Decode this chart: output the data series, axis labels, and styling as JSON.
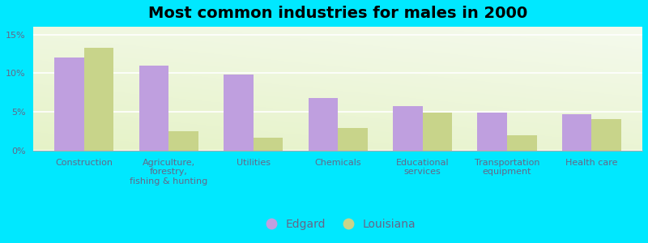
{
  "title": "Most common industries for males in 2000",
  "categories": [
    "Construction",
    "Agriculture,\nforestry,\nfishing & hunting",
    "Utilities",
    "Chemicals",
    "Educational\nservices",
    "Transportation\nequipment",
    "Health care"
  ],
  "edgard_values": [
    12.0,
    11.0,
    9.8,
    6.8,
    5.8,
    4.9,
    4.7
  ],
  "louisiana_values": [
    13.3,
    2.5,
    1.7,
    2.9,
    4.9,
    2.0,
    4.1
  ],
  "edgard_color": "#bf9fdf",
  "louisiana_color": "#c8d48a",
  "background_color": "#00e8ff",
  "ylim": [
    0,
    16
  ],
  "yticks": [
    0,
    5,
    10,
    15
  ],
  "ytick_labels": [
    "0%",
    "5%",
    "10%",
    "15%"
  ],
  "bar_width": 0.35,
  "title_fontsize": 14,
  "tick_fontsize": 8,
  "legend_fontsize": 10,
  "label_color": "#666688"
}
